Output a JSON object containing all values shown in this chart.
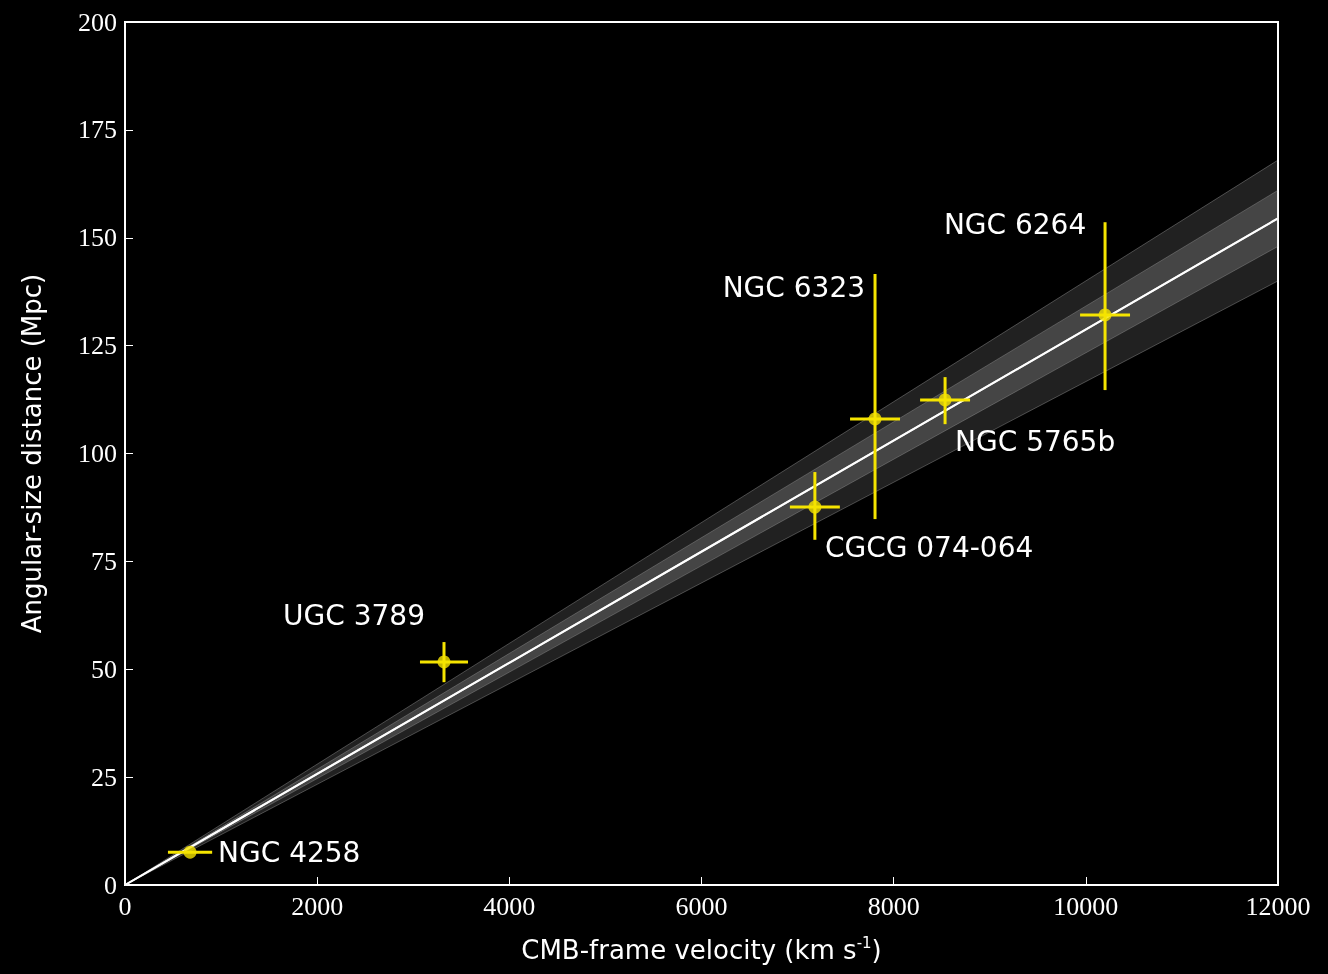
{
  "chart_data": {
    "type": "scatter",
    "xlabel": "CMB-frame velocity (km s$^{-1}$)",
    "ylabel": "Angular-size distance (Mpc)",
    "xlim": [
      0,
      12000
    ],
    "xticks": [
      0,
      2000,
      4000,
      6000,
      8000,
      10000,
      12000
    ],
    "ylim": [
      0,
      200
    ],
    "yticks": [
      0,
      25,
      50,
      75,
      100,
      125,
      150,
      175,
      200
    ],
    "grid": false,
    "series": [
      {
        "type": "line",
        "marker": "none",
        "color": "#ffffff",
        "x": [
          0,
          12000
        ],
        "values": [
          0,
          154.5
        ],
        "lower": [
          0,
          140
        ],
        "upper": [
          0,
          168
        ]
      },
      {
        "type": "line",
        "marker": "none",
        "color": "#d9d9d9",
        "x": [
          0,
          12000
        ],
        "values": [
          0,
          154.5
        ],
        "lower": [
          0,
          148
        ],
        "upper": [
          0,
          161
        ]
      },
      {
        "marker": "circle",
        "color": "#f5e400",
        "x": [
          677,
          3320,
          7180,
          7806,
          8535,
          10200
        ],
        "values": [
          7.6,
          51.7,
          87.6,
          108,
          112.4,
          132.1
        ],
        "errors": [
          null,
          [
            47,
            56.3
          ],
          [
            80,
            95.7
          ],
          [
            84.8,
            141.6
          ],
          [
            106.8,
            117.7
          ],
          [
            114.7,
            153.6
          ]
        ],
        "xerrors": [
          230,
          250,
          260,
          260,
          260,
          260
        ]
      }
    ],
    "annotations": [
      {
        "text": "NGC 4258",
        "x": 677,
        "y": 7.6
      },
      {
        "text": "UGC 3789",
        "x": 3320,
        "y": 51.7
      },
      {
        "text": "CGCG 074-064",
        "x": 7180,
        "y": 87.6
      },
      {
        "text": "NGC 6323",
        "x": 7806,
        "y": 141.6
      },
      {
        "text": "NGC 5765b",
        "x": 8535,
        "y": 112.4
      },
      {
        "text": "NGC 6264",
        "x": 10200,
        "y": 132.1
      }
    ]
  }
}
